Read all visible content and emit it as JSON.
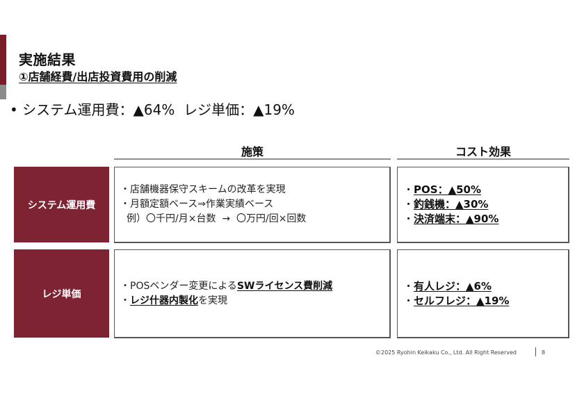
{
  "slide": {
    "title": "実施結果",
    "subtitle": "①店舗経費/出店投資費用の削減",
    "headline": "• システム運用費：▲64%  レジ単価：▲19%",
    "colors": {
      "accent_red": "#7b1c2a",
      "accent_gray": "#8c8c8c",
      "row_label_bg": "#7e2332"
    }
  },
  "table": {
    "headers": {
      "measures": "施策",
      "effect": "コスト効果"
    },
    "rows": [
      {
        "label": "システム運用費",
        "measures": [
          {
            "prefix": "・",
            "plain": "店舗機器保守スキームの改革を実現",
            "bold": "",
            "suffix": ""
          },
          {
            "prefix": "・",
            "plain": "月額定額ベース⇒作業実績ベース",
            "bold": "",
            "suffix": ""
          },
          {
            "prefix": "",
            "plain": "例）〇千円/月×台数  →  〇万円/回×回数",
            "bold": "",
            "suffix": ""
          }
        ],
        "effects": [
          {
            "prefix": "・",
            "text": "POS：▲50%"
          },
          {
            "prefix": "・",
            "text": "釣銭機：▲30%"
          },
          {
            "prefix": "・",
            "text": "決済端末：▲90%"
          }
        ]
      },
      {
        "label": "レジ単価",
        "measures": [
          {
            "prefix": "・",
            "plain": "POSベンダー変更による",
            "bold": "SWライセンス費削減",
            "suffix": ""
          },
          {
            "prefix": "・",
            "plain": "",
            "bold": "レジ什器内製化",
            "suffix": "を実現"
          }
        ],
        "effects": [
          {
            "prefix": "・",
            "text": "有人レジ：▲6%"
          },
          {
            "prefix": "・",
            "text": "セルフレジ：▲19%"
          }
        ]
      }
    ]
  },
  "footer": {
    "copyright": "©2025 Ryohin Keikaku Co., Ltd. All Right Reserved",
    "page_number": "8"
  }
}
